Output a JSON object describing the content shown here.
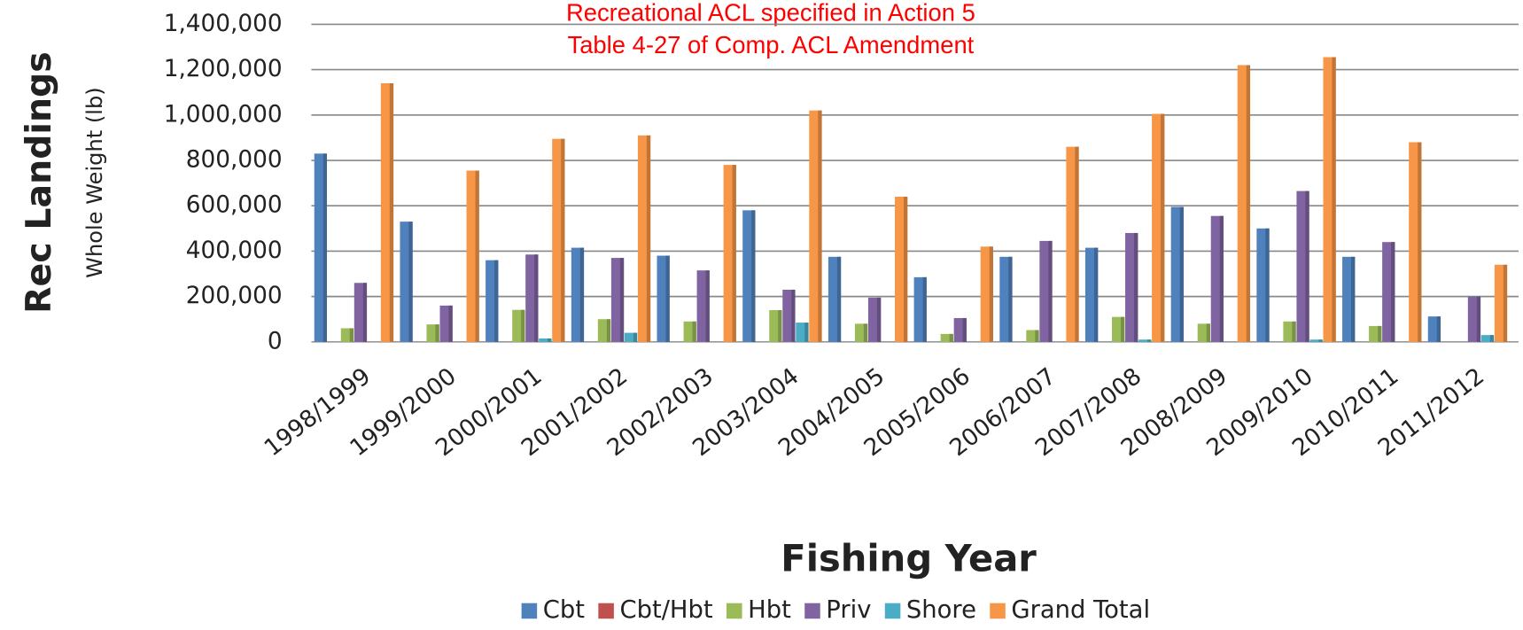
{
  "chart_data": {
    "type": "bar",
    "annotations": [
      "Recreational  ACL specified in Action 5",
      "Table 4-27 of Comp. ACL Amendment"
    ],
    "y_label": "Rec Landings",
    "y_sublabel": "Whole Weight (lb)",
    "x_label": "Fishing Year",
    "categories": [
      "1998/1999",
      "1999/2000",
      "2000/2001",
      "2001/2002",
      "2002/2003",
      "2003/2004",
      "2004/2005",
      "2005/2006",
      "2006/2007",
      "2007/2008",
      "2008/2009",
      "2009/2010",
      "2010/2011",
      "2011/2012"
    ],
    "series": [
      {
        "name": "Cbt",
        "color": "#4f81bd",
        "values": [
          830000,
          530000,
          360000,
          415000,
          380000,
          580000,
          375000,
          285000,
          375000,
          415000,
          595000,
          500000,
          375000,
          112000
        ]
      },
      {
        "name": "Cbt/Hbt",
        "color": "#c0504d",
        "values": [
          0,
          0,
          0,
          0,
          0,
          0,
          0,
          0,
          0,
          0,
          0,
          0,
          0,
          0
        ]
      },
      {
        "name": "Hbt",
        "color": "#9bbb59",
        "values": [
          60000,
          77000,
          141000,
          100000,
          90000,
          140000,
          80000,
          35000,
          52000,
          110000,
          80000,
          90000,
          70000,
          0
        ]
      },
      {
        "name": "Priv",
        "color": "#8064a2",
        "values": [
          260000,
          160000,
          385000,
          370000,
          315000,
          230000,
          195000,
          105000,
          445000,
          480000,
          555000,
          665000,
          440000,
          200000
        ]
      },
      {
        "name": "Shore",
        "color": "#4bacc6",
        "values": [
          0,
          0,
          15000,
          40000,
          0,
          85000,
          0,
          0,
          0,
          10000,
          0,
          10000,
          0,
          30000
        ]
      },
      {
        "name": "Grand Total",
        "color": "#f79646",
        "values": [
          1140000,
          755000,
          895000,
          910000,
          780000,
          1020000,
          640000,
          420000,
          860000,
          1005000,
          1220000,
          1255000,
          880000,
          340000
        ]
      }
    ],
    "ylim": [
      0,
      1400000
    ],
    "yticks": [
      0,
      {
        "value": 200000,
        "label": "200,000"
      },
      {
        "value": 400000,
        "label": "400,000"
      },
      {
        "value": 600000,
        "label": "600,000"
      },
      {
        "value": 800000,
        "label": "800,000"
      },
      {
        "value": 1000000,
        "label": "1,000,000"
      },
      {
        "value": 1200000,
        "label": "1,200,000"
      },
      {
        "value": 1400000,
        "label": "1,400,000"
      }
    ],
    "grid": true,
    "legend": "bottom"
  }
}
